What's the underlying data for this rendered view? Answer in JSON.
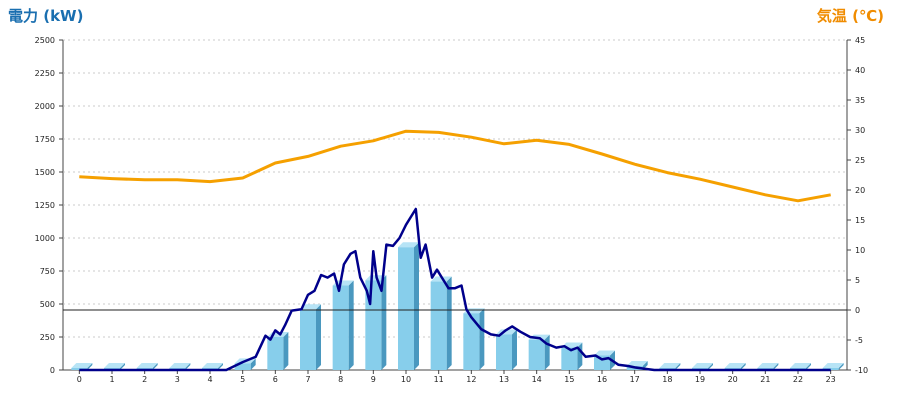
{
  "chart_data": {
    "type": "bar",
    "title_left": "電力 (kW)",
    "title_right": "気温 (℃)",
    "categories": [
      "0",
      "1",
      "2",
      "3",
      "4",
      "5",
      "6",
      "7",
      "8",
      "9",
      "10",
      "11",
      "12",
      "13",
      "14",
      "15",
      "16",
      "17",
      "18",
      "19",
      "20",
      "21",
      "22",
      "23"
    ],
    "y_left": {
      "min": 0,
      "max": 2500,
      "ticks": [
        "0",
        "250",
        "500",
        "750",
        "1000",
        "1250",
        "1500",
        "1750",
        "2000",
        "2250",
        "2500"
      ]
    },
    "y_right": {
      "min": -10,
      "max": 45,
      "ticks": [
        "-10",
        "-5",
        "0",
        "5",
        "10",
        "15",
        "20",
        "25",
        "30",
        "35",
        "40",
        "45"
      ]
    },
    "series": [
      {
        "kind": "bars",
        "axis": "left",
        "color": "#87ceeb",
        "values": [
          0,
          0,
          0,
          0,
          0,
          50,
          250,
          460,
          640,
          680,
          930,
          670,
          430,
          270,
          230,
          170,
          110,
          30,
          0,
          0,
          0,
          0,
          0,
          0
        ]
      },
      {
        "kind": "line",
        "axis": "left",
        "color": "#00008b",
        "points": [
          [
            0,
            0
          ],
          [
            4.5,
            0
          ],
          [
            5.0,
            60
          ],
          [
            5.4,
            100
          ],
          [
            5.7,
            260
          ],
          [
            5.85,
            230
          ],
          [
            6.0,
            300
          ],
          [
            6.15,
            270
          ],
          [
            6.3,
            340
          ],
          [
            6.5,
            450
          ],
          [
            6.8,
            460
          ],
          [
            7.0,
            570
          ],
          [
            7.2,
            600
          ],
          [
            7.4,
            720
          ],
          [
            7.6,
            700
          ],
          [
            7.8,
            730
          ],
          [
            7.95,
            600
          ],
          [
            8.1,
            800
          ],
          [
            8.3,
            880
          ],
          [
            8.45,
            900
          ],
          [
            8.6,
            700
          ],
          [
            8.8,
            600
          ],
          [
            8.9,
            500
          ],
          [
            9.0,
            900
          ],
          [
            9.1,
            700
          ],
          [
            9.25,
            600
          ],
          [
            9.4,
            950
          ],
          [
            9.6,
            940
          ],
          [
            9.8,
            1000
          ],
          [
            10.0,
            1100
          ],
          [
            10.15,
            1160
          ],
          [
            10.3,
            1220
          ],
          [
            10.45,
            850
          ],
          [
            10.6,
            950
          ],
          [
            10.8,
            700
          ],
          [
            10.95,
            760
          ],
          [
            11.1,
            700
          ],
          [
            11.3,
            620
          ],
          [
            11.5,
            620
          ],
          [
            11.7,
            640
          ],
          [
            11.85,
            460
          ],
          [
            12.0,
            400
          ],
          [
            12.3,
            310
          ],
          [
            12.6,
            270
          ],
          [
            12.85,
            260
          ],
          [
            13.05,
            300
          ],
          [
            13.25,
            330
          ],
          [
            13.5,
            290
          ],
          [
            13.8,
            250
          ],
          [
            14.1,
            240
          ],
          [
            14.3,
            200
          ],
          [
            14.6,
            170
          ],
          [
            14.85,
            180
          ],
          [
            15.05,
            150
          ],
          [
            15.25,
            170
          ],
          [
            15.5,
            100
          ],
          [
            15.8,
            110
          ],
          [
            16.0,
            80
          ],
          [
            16.2,
            90
          ],
          [
            16.5,
            40
          ],
          [
            16.8,
            30
          ],
          [
            17.0,
            20
          ],
          [
            17.3,
            10
          ],
          [
            17.6,
            0
          ],
          [
            23.0,
            0
          ]
        ]
      },
      {
        "kind": "line",
        "axis": "right",
        "color": "#f5a000",
        "values": [
          22.2,
          21.9,
          21.7,
          21.7,
          21.4,
          22.0,
          24.5,
          25.6,
          27.3,
          28.2,
          29.8,
          29.6,
          28.8,
          27.7,
          28.3,
          27.6,
          26.0,
          24.3,
          22.9,
          21.8,
          20.5,
          19.2,
          18.2,
          19.2
        ]
      }
    ],
    "grid": true
  }
}
